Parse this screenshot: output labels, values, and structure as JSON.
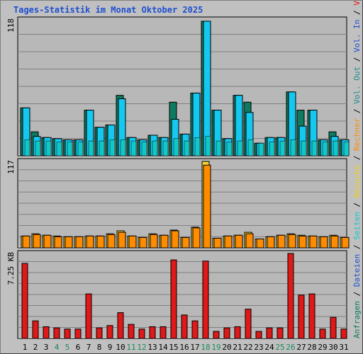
{
  "title": "Tages-Statistik im Monat Oktober 2025",
  "colors": {
    "background": "#c0c0c0",
    "panel": "#b8b8b8",
    "gridline": "#808080",
    "anfragen": "#0e7a5f",
    "dateien": "#14c8f0",
    "seiten": "#10c8c8",
    "besuche": "#f4d33a",
    "rechner": "#ff8c00",
    "volumen": "#e01818",
    "weekend": "#1a8a5a",
    "weekday": "#000000"
  },
  "chart_data": [
    {
      "type": "bar",
      "panel": "top",
      "ymax_label": "118",
      "categories": [
        "1",
        "2",
        "3",
        "4",
        "5",
        "6",
        "7",
        "8",
        "9",
        "10",
        "11",
        "12",
        "13",
        "14",
        "15",
        "16",
        "17",
        "18",
        "19",
        "20",
        "21",
        "22",
        "23",
        "24",
        "25",
        "26",
        "27",
        "28",
        "29",
        "30",
        "31"
      ],
      "weekend_days": [
        4,
        5,
        11,
        12,
        18,
        19,
        25,
        26
      ],
      "series": [
        {
          "name": "Anfragen",
          "values": [
            42,
            21,
            16,
            15,
            14,
            14,
            40,
            25,
            27,
            53,
            16,
            14,
            18,
            16,
            47,
            19,
            55,
            118,
            40,
            15,
            53,
            47,
            11,
            16,
            16,
            56,
            40,
            40,
            14,
            21,
            14
          ]
        },
        {
          "name": "Dateien",
          "values": [
            42,
            17,
            16,
            15,
            14,
            14,
            40,
            25,
            27,
            50,
            16,
            14,
            18,
            16,
            32,
            19,
            55,
            118,
            40,
            15,
            53,
            38,
            11,
            16,
            16,
            56,
            26,
            40,
            14,
            17,
            14
          ]
        },
        {
          "name": "Seiten",
          "values": [
            14,
            13,
            13,
            12,
            12,
            12,
            13,
            13,
            14,
            14,
            13,
            12,
            13,
            13,
            15,
            13,
            16,
            17,
            13,
            12,
            13,
            14,
            11,
            12,
            13,
            14,
            13,
            13,
            12,
            13,
            12
          ]
        }
      ]
    },
    {
      "type": "bar",
      "panel": "middle",
      "ymax_label": "117",
      "categories": [
        "1",
        "2",
        "3",
        "4",
        "5",
        "6",
        "7",
        "8",
        "9",
        "10",
        "11",
        "12",
        "13",
        "14",
        "15",
        "16",
        "17",
        "18",
        "19",
        "20",
        "21",
        "22",
        "23",
        "24",
        "25",
        "26",
        "27",
        "28",
        "29",
        "30",
        "31"
      ],
      "series": [
        {
          "name": "Besuche",
          "values": [
            16,
            19,
            17,
            16,
            15,
            15,
            16,
            16,
            19,
            23,
            16,
            14,
            19,
            17,
            24,
            14,
            28,
            117,
            13,
            16,
            17,
            21,
            12,
            15,
            17,
            19,
            17,
            16,
            15,
            17,
            14
          ]
        },
        {
          "name": "Rechner",
          "values": [
            16,
            18,
            17,
            15,
            15,
            15,
            16,
            16,
            18,
            21,
            16,
            14,
            18,
            17,
            23,
            14,
            27,
            112,
            13,
            16,
            17,
            19,
            12,
            15,
            17,
            18,
            16,
            16,
            15,
            16,
            14
          ]
        }
      ]
    },
    {
      "type": "bar",
      "panel": "bottom",
      "ymax_label": "7.25 KB",
      "categories": [
        "1",
        "2",
        "3",
        "4",
        "5",
        "6",
        "7",
        "8",
        "9",
        "10",
        "11",
        "12",
        "13",
        "14",
        "15",
        "16",
        "17",
        "18",
        "19",
        "20",
        "21",
        "22",
        "23",
        "24",
        "25",
        "26",
        "27",
        "28",
        "29",
        "30",
        "31"
      ],
      "series": [
        {
          "name": "Volumen",
          "values": [
            6.4,
            1.5,
            1.0,
            0.9,
            0.8,
            0.8,
            3.8,
            0.9,
            1.1,
            2.2,
            1.2,
            0.8,
            1.0,
            1.0,
            6.7,
            2.0,
            1.5,
            6.6,
            0.6,
            0.9,
            1.0,
            2.5,
            0.6,
            0.9,
            0.9,
            7.25,
            3.7,
            3.8,
            0.8,
            1.8,
            0.8
          ]
        }
      ]
    }
  ],
  "right_legend": {
    "top": [
      {
        "text": "Anfragen",
        "color": "#0e7a5f"
      },
      {
        "text": " / ",
        "color": "#000000"
      },
      {
        "text": "Dateien",
        "color": "#1e4fd0"
      },
      {
        "text": " / ",
        "color": "#000000"
      },
      {
        "text": "Seiten",
        "color": "#10c8c8"
      },
      {
        "text": " / ",
        "color": "#000000"
      },
      {
        "text": "Besuche",
        "color": "#e8d020"
      },
      {
        "text": " / ",
        "color": "#000000"
      },
      {
        "text": "Rechner",
        "color": "#ff8c00"
      },
      {
        "text": " / ",
        "color": "#000000"
      },
      {
        "text": "Vol. Out",
        "color": "#1e8a8a"
      },
      {
        "text": " / ",
        "color": "#000000"
      },
      {
        "text": "Vol. In",
        "color": "#1e4fd0"
      },
      {
        "text": " / ",
        "color": "#000000"
      },
      {
        "text": "Volumen",
        "color": "#e01818"
      }
    ]
  }
}
